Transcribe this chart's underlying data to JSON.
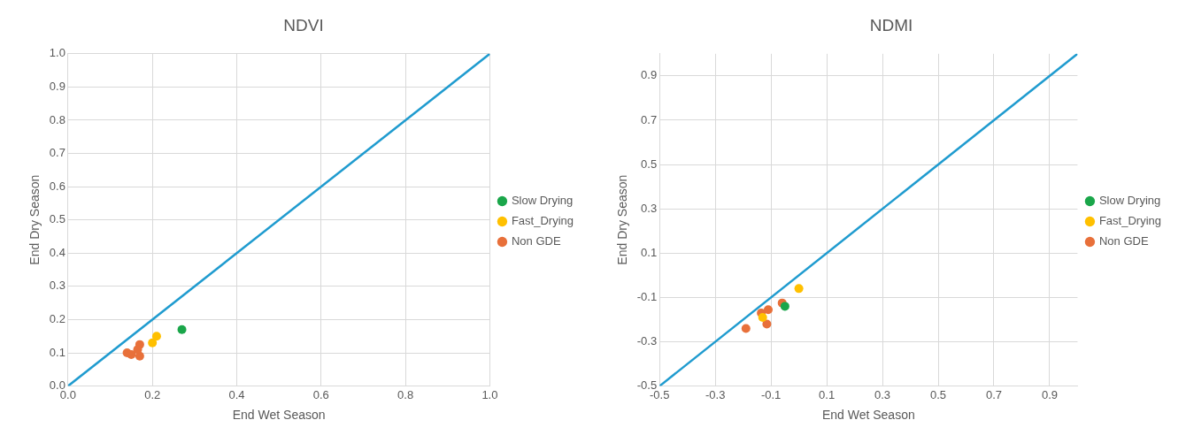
{
  "chart_data": [
    {
      "type": "scatter",
      "title": "NDVI",
      "xlabel": "End Wet Season",
      "ylabel": "End Dry Season",
      "xlim": [
        0,
        1
      ],
      "ylim": [
        0,
        1
      ],
      "xticks": [
        {
          "value": 0,
          "label": "0.0"
        },
        0.2,
        0.4,
        0.6,
        0.8,
        {
          "value": 1,
          "label": "1.0"
        }
      ],
      "yticks": [
        {
          "value": 0,
          "label": "0.0"
        },
        0.1,
        0.2,
        0.3,
        0.4,
        0.5,
        0.6,
        0.7,
        0.8,
        0.9,
        {
          "value": 1,
          "label": "1.0"
        }
      ],
      "grid": true,
      "legend": "right",
      "marker": "circle",
      "series": [
        {
          "type": "line",
          "marker": "none",
          "color": "#1f9bcf",
          "x": [
            0,
            1
          ],
          "values": [
            0,
            1
          ]
        },
        {
          "name": "Slow Drying",
          "color": "#1aa64a",
          "x": [
            0.27
          ],
          "values": [
            0.17
          ]
        },
        {
          "name": "Fast_Drying",
          "color": "#ffc000",
          "x": [
            0.2,
            0.21
          ],
          "values": [
            0.13,
            0.15
          ]
        },
        {
          "name": "Non GDE",
          "color": "#e8703a",
          "x": [
            0.14,
            0.15,
            0.17,
            0.17,
            0.165
          ],
          "values": [
            0.1,
            0.095,
            0.125,
            0.09,
            0.11
          ]
        }
      ]
    },
    {
      "type": "scatter",
      "title": "NDMI",
      "xlabel": "End Wet Season",
      "ylabel": "End Dry Season",
      "xlim": [
        -0.5,
        1
      ],
      "ylim": [
        -0.5,
        1
      ],
      "xticks": [
        -0.5,
        -0.3,
        -0.1,
        0.1,
        0.3,
        0.5,
        0.7,
        0.9
      ],
      "yticks": [
        -0.5,
        -0.3,
        -0.1,
        0.1,
        0.3,
        0.5,
        0.7,
        0.9
      ],
      "grid": true,
      "legend": "right",
      "marker": "circle",
      "series": [
        {
          "type": "line",
          "marker": "none",
          "color": "#1f9bcf",
          "x": [
            -0.5,
            1
          ],
          "values": [
            -0.5,
            1
          ]
        },
        {
          "name": "Slow Drying",
          "color": "#1aa64a",
          "x": [
            -0.05
          ],
          "values": [
            -0.14
          ]
        },
        {
          "name": "Fast_Drying",
          "color": "#ffc000",
          "x": [
            0.0,
            -0.13
          ],
          "values": [
            -0.06,
            -0.19
          ]
        },
        {
          "name": "Non GDE",
          "color": "#e8703a",
          "x": [
            -0.19,
            -0.135,
            -0.11,
            -0.115,
            -0.06
          ],
          "values": [
            -0.24,
            -0.17,
            -0.155,
            -0.22,
            -0.125
          ]
        }
      ]
    }
  ]
}
